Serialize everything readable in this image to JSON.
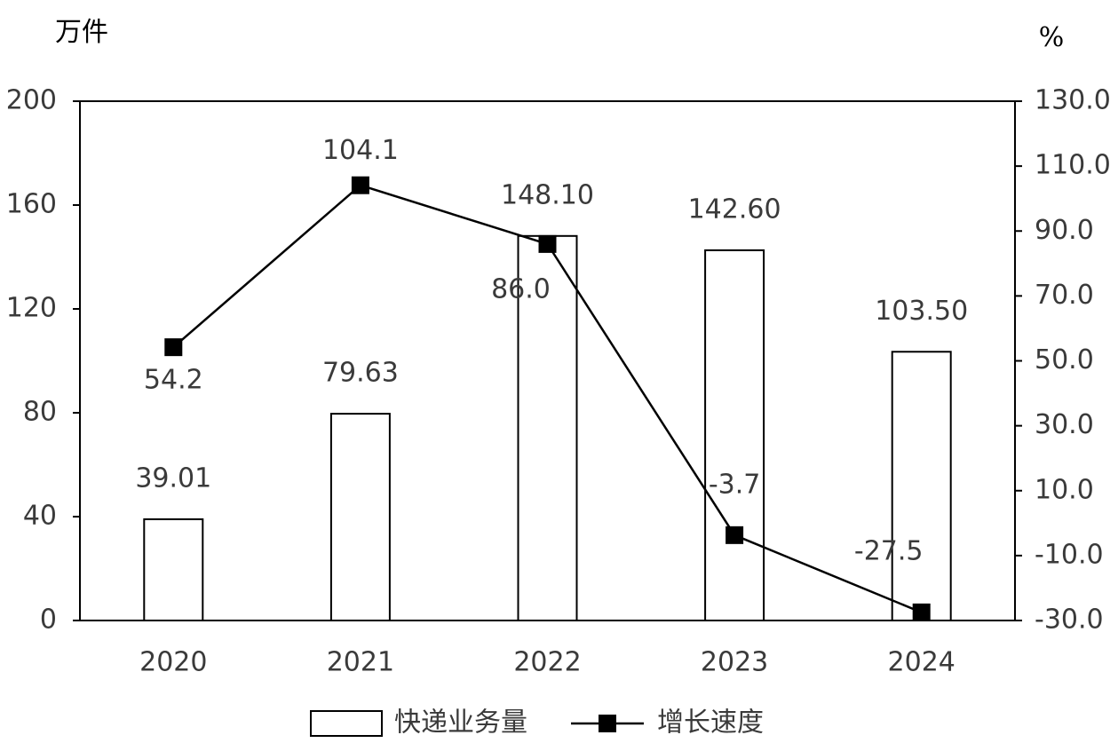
{
  "chart_data": {
    "type": "bar",
    "y_label": "万件",
    "y2_label": "%",
    "categories": [
      "2020",
      "2021",
      "2022",
      "2023",
      "2024"
    ],
    "series": [
      {
        "name": "快递业务量",
        "type": "bar",
        "color": "#ffffff",
        "stroke": "#000000",
        "values": [
          39.01,
          79.63,
          148.1,
          142.6,
          103.5
        ],
        "value_labels": [
          "39.01",
          "79.63",
          "148.10",
          "142.60",
          "103.50"
        ]
      },
      {
        "name": "增长速度",
        "type": "line",
        "axis": "y2",
        "color": "#000000",
        "values": [
          54.2,
          104.1,
          86.0,
          -3.7,
          -27.5
        ],
        "value_labels": [
          "54.2",
          "104.1",
          "86.0",
          "-3.7",
          "-27.5"
        ]
      }
    ],
    "ylim": [
      0,
      200
    ],
    "yticks": [
      0,
      40,
      80,
      120,
      160,
      200
    ],
    "y2lim": [
      -30,
      130
    ],
    "y2ticks": [
      {
        "value": -30,
        "label": "-30.0"
      },
      {
        "value": -10,
        "label": "-10.0"
      },
      {
        "value": 10,
        "label": "10.0"
      },
      {
        "value": 30,
        "label": "30.0"
      },
      {
        "value": 50,
        "label": "50.0"
      },
      {
        "value": 70,
        "label": "70.0"
      },
      {
        "value": 90,
        "label": "90.0"
      },
      {
        "value": 110,
        "label": "110.0"
      },
      {
        "value": 130,
        "label": "130.0"
      }
    ],
    "grid": false
  }
}
